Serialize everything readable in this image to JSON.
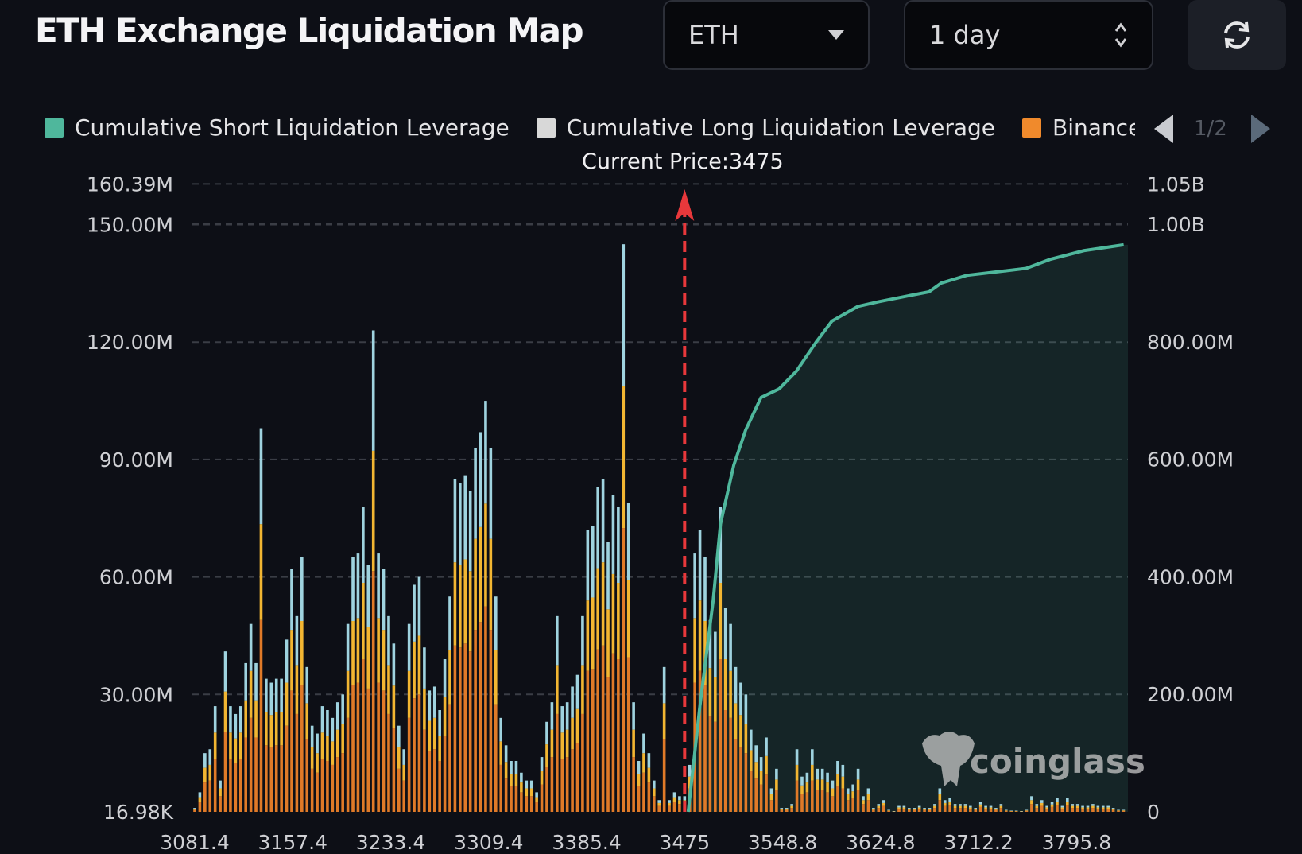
{
  "header": {
    "title": "ETH Exchange Liquidation Map",
    "coin_select": {
      "value": "ETH",
      "icon": "caret-down-icon"
    },
    "period_select": {
      "value": "1 day",
      "icon": "up-down-chevron-icon"
    },
    "refresh_icon": "refresh-icon"
  },
  "legend": {
    "items": [
      {
        "label": "Cumulative Short Liquidation Leverage",
        "color": "#4fb79c"
      },
      {
        "label": "Cumulative Long Liquidation Leverage",
        "color": "#d8d8d8"
      },
      {
        "label": "Binance",
        "color": "#f08a2c"
      }
    ],
    "page": "1/2"
  },
  "current_price_label": "Current Price:3475",
  "watermark": "coinglass",
  "chart_data": {
    "type": "bar",
    "stacked": true,
    "grid": true,
    "x_tick_labels": [
      "3081.4",
      "3157.4",
      "3233.4",
      "3309.4",
      "3385.4",
      "3475",
      "3548.8",
      "3624.8",
      "3712.2",
      "3795.8"
    ],
    "y_left": {
      "tick_labels": [
        "16.98K",
        "30.00M",
        "60.00M",
        "90.00M",
        "120.00M",
        "150.00M",
        "160.39M"
      ],
      "ylim_millions": [
        0,
        160.39
      ]
    },
    "y_right": {
      "tick_labels": [
        "0",
        "200.00M",
        "400.00M",
        "600.00M",
        "800.00M",
        "1.00B",
        "1.05B"
      ],
      "ylim_millions": [
        0,
        1050
      ]
    },
    "current_price": 3475,
    "current_price_color": "#e8383b",
    "series": [
      {
        "name": "Binance",
        "color": "#e07a28",
        "values_millions": [
          0.5,
          2.5,
          7.5,
          8,
          13.5,
          4,
          20.5,
          13.5,
          12.5,
          13.5,
          19,
          24,
          19,
          49,
          17,
          16.5,
          17,
          17,
          22,
          31,
          25,
          32.5,
          18.5,
          11,
          10,
          13.5,
          13,
          12,
          14,
          15,
          24,
          32.5,
          33,
          39,
          31.5,
          61.5,
          33,
          31,
          25,
          21.5,
          11,
          8,
          24,
          29,
          30,
          21,
          15.5,
          16,
          13,
          19.5,
          27.5,
          42.5,
          42,
          43,
          41,
          46.5,
          48.5,
          52.5,
          46.5,
          27.5,
          12,
          8.5,
          6.5,
          6.5,
          5,
          4,
          4,
          2.5,
          7,
          11.5,
          14,
          25,
          13.5,
          14,
          16,
          17.5,
          25,
          36,
          36.5,
          41.5,
          42.5,
          34.5,
          40.5,
          39,
          72.5,
          39.5,
          14,
          6.5,
          10,
          7.5,
          4,
          1.5,
          18.5,
          1.5,
          2.5,
          2,
          2,
          6,
          33,
          36,
          32.5,
          24.5,
          23,
          39,
          26,
          24,
          18.5,
          16.5,
          15,
          10.5,
          8.5,
          7,
          9.5,
          3,
          5.5,
          0.5,
          0.5,
          1,
          8,
          4.5,
          5,
          8,
          5.5,
          5.5,
          5,
          4,
          6.5,
          6,
          3,
          3.5,
          5.5,
          2,
          3,
          0.5,
          1,
          1.5,
          0.25,
          0.1,
          0.75,
          0.75,
          0.5,
          0.5,
          0.75,
          0.5,
          0.5,
          1,
          3,
          1.5,
          1.75,
          1,
          1,
          1,
          0.75,
          0.5,
          1.25,
          0.75,
          0.75,
          0.5,
          1,
          0.25,
          0.15,
          0.15,
          0.1,
          0.25,
          2,
          1,
          1.5,
          0.75,
          1.25,
          1.75,
          0.75,
          1.75,
          1,
          1,
          0.75,
          0.75,
          1,
          0.75,
          0.75,
          0.75,
          0.5,
          0.25,
          0.25
        ]
      },
      {
        "color": "#f2b632",
        "values_millions": [
          0.25,
          1.25,
          3.75,
          4,
          6.75,
          2,
          10.25,
          6.75,
          6.25,
          6.75,
          9.5,
          12,
          9.5,
          24.5,
          8.5,
          8.25,
          8.5,
          8.5,
          11,
          15.5,
          12.5,
          16.25,
          9.25,
          5.5,
          5,
          6.75,
          6.5,
          6,
          7,
          7.5,
          12,
          16.25,
          16.5,
          19.5,
          15.75,
          30.75,
          16.5,
          15.5,
          12.5,
          10.75,
          5.5,
          4,
          12,
          14.5,
          15,
          10.5,
          7.75,
          8,
          6.5,
          9.75,
          13.75,
          21.25,
          21,
          21.5,
          20.5,
          23.25,
          24.25,
          26.25,
          23.25,
          13.75,
          6,
          4.25,
          3.25,
          3.25,
          2.5,
          2,
          2,
          1.25,
          3.5,
          5.75,
          7,
          12.5,
          6.75,
          7,
          8,
          8.75,
          12.5,
          18,
          18.25,
          20.75,
          21.25,
          17.25,
          20.25,
          19.5,
          36.25,
          19.75,
          7,
          3.25,
          5,
          3.75,
          2,
          0.75,
          9.25,
          0.75,
          1.25,
          1,
          1,
          3,
          16.5,
          18,
          16.25,
          12.25,
          11.5,
          19.5,
          13,
          12,
          9.25,
          8.25,
          7.5,
          5.25,
          4.25,
          3.5,
          4.75,
          1.5,
          2.75,
          0.25,
          0.25,
          0.5,
          4,
          2.25,
          2.5,
          4,
          2.75,
          2.75,
          2.5,
          2,
          3.25,
          3,
          1.5,
          1.75,
          2.75,
          1,
          1.5,
          0.25,
          0.5,
          0.75,
          0.13,
          0.05,
          0.38,
          0.38,
          0.25,
          0.25,
          0.38,
          0.25,
          0.25,
          0.5,
          1.5,
          0.75,
          0.88,
          0.5,
          0.5,
          0.5,
          0.38,
          0.25,
          0.63,
          0.38,
          0.38,
          0.25,
          0.5,
          0.13,
          0.08,
          0.08,
          0.05,
          0.13,
          1,
          0.5,
          0.75,
          0.38,
          0.63,
          0.88,
          0.38,
          0.88,
          0.5,
          0.5,
          0.38,
          0.38,
          0.5,
          0.38,
          0.38,
          0.38,
          0.25,
          0.13,
          0.13
        ]
      },
      {
        "color": "#9fd3df",
        "values_millions": [
          0.25,
          1.25,
          3.75,
          4,
          6.75,
          2,
          10.25,
          6.75,
          6.25,
          6.75,
          9.5,
          12,
          9.5,
          24.5,
          8.5,
          8.25,
          8.5,
          8.5,
          11,
          15.5,
          12.5,
          16.25,
          9.25,
          5.5,
          5,
          6.75,
          6.5,
          6,
          7,
          7.5,
          12,
          16.25,
          16.5,
          19.5,
          15.75,
          30.75,
          16.5,
          15.5,
          12.5,
          10.75,
          5.5,
          4,
          12,
          14.5,
          15,
          10.5,
          7.75,
          8,
          6.5,
          9.75,
          13.75,
          21.25,
          21,
          21.5,
          20.5,
          23.25,
          24.25,
          26.25,
          23.25,
          13.75,
          6,
          4.25,
          3.25,
          3.25,
          2.5,
          2,
          2,
          1.25,
          3.5,
          5.75,
          7,
          12.5,
          6.75,
          7,
          8,
          8.75,
          12.5,
          18,
          18.25,
          20.75,
          21.25,
          17.25,
          20.25,
          19.5,
          36.25,
          19.75,
          7,
          3.25,
          5,
          3.75,
          2,
          0.75,
          9.25,
          0.75,
          1.25,
          1,
          1,
          3,
          16.5,
          18,
          16.25,
          12.25,
          11.5,
          19.5,
          13,
          12,
          9.25,
          8.25,
          7.5,
          5.25,
          4.25,
          3.5,
          4.75,
          1.5,
          2.75,
          0.25,
          0.25,
          0.5,
          4,
          2.25,
          2.5,
          4,
          2.75,
          2.75,
          2.5,
          2,
          3.25,
          3,
          1.5,
          1.75,
          2.75,
          1,
          1.5,
          0.25,
          0.5,
          0.75,
          0.13,
          0.05,
          0.38,
          0.38,
          0.25,
          0.25,
          0.38,
          0.25,
          0.25,
          0.5,
          1.5,
          0.75,
          0.88,
          0.5,
          0.5,
          0.5,
          0.38,
          0.25,
          0.63,
          0.38,
          0.38,
          0.25,
          0.5,
          0.13,
          0.08,
          0.08,
          0.05,
          0.13,
          1,
          0.5,
          0.75,
          0.38,
          0.63,
          0.88,
          0.38,
          0.88,
          0.5,
          0.5,
          0.38,
          0.38,
          0.5,
          0.38,
          0.38,
          0.38,
          0.25,
          0.13,
          0.13
        ]
      }
    ],
    "cumulative_short_line": {
      "axis": "right",
      "color": "#4fb79c",
      "points": [
        [
          3477.7,
          0
        ],
        [
          3486.5,
          180
        ],
        [
          3496.5,
          360
        ],
        [
          3502,
          490
        ],
        [
          3512,
          590
        ],
        [
          3521,
          650
        ],
        [
          3532.5,
          705
        ],
        [
          3546.3,
          720
        ],
        [
          3559.5,
          750
        ],
        [
          3575,
          800
        ],
        [
          3587,
          835
        ],
        [
          3607,
          860
        ],
        [
          3623,
          868
        ],
        [
          3649,
          878
        ],
        [
          3668,
          885
        ],
        [
          3679,
          900
        ],
        [
          3701.5,
          913
        ],
        [
          3732,
          920
        ],
        [
          3753,
          925
        ],
        [
          3773,
          940
        ],
        [
          3802,
          955
        ],
        [
          3836,
          965
        ]
      ]
    }
  }
}
